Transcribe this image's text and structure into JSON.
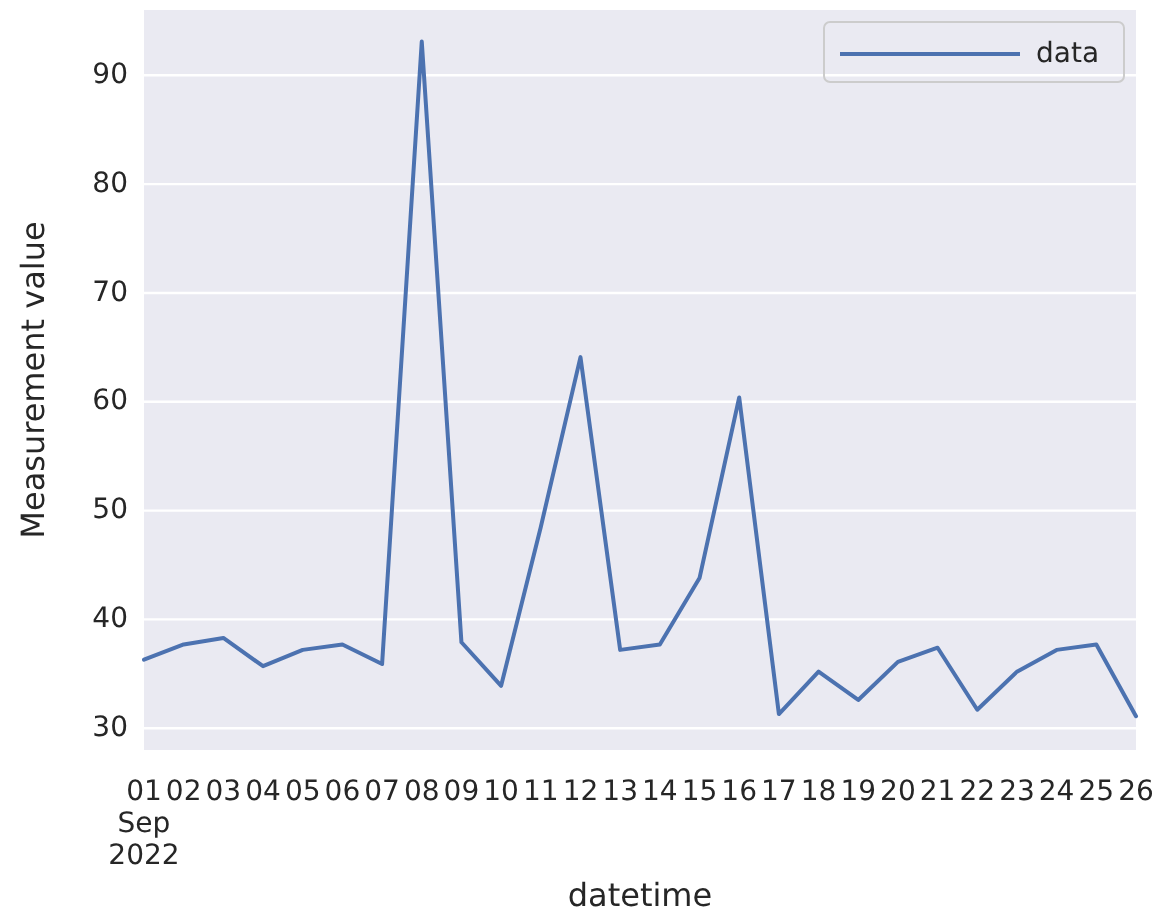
{
  "chart_data": {
    "type": "line",
    "xlabel": "datetime",
    "ylabel": "Measurement value",
    "x": [
      "2022-09-01",
      "2022-09-02",
      "2022-09-03",
      "2022-09-04",
      "2022-09-05",
      "2022-09-06",
      "2022-09-07",
      "2022-09-08",
      "2022-09-09",
      "2022-09-10",
      "2022-09-11",
      "2022-09-12",
      "2022-09-13",
      "2022-09-14",
      "2022-09-15",
      "2022-09-16",
      "2022-09-17",
      "2022-09-18",
      "2022-09-19",
      "2022-09-20",
      "2022-09-21",
      "2022-09-22",
      "2022-09-23",
      "2022-09-24",
      "2022-09-25",
      "2022-09-26"
    ],
    "series": [
      {
        "name": "data",
        "color": "#4c72b0",
        "values": [
          36.3,
          37.7,
          38.3,
          35.7,
          37.2,
          37.7,
          35.9,
          93.1,
          37.9,
          33.9,
          48.5,
          64.1,
          37.2,
          37.7,
          43.8,
          60.4,
          31.3,
          35.2,
          32.6,
          36.1,
          37.4,
          31.7,
          35.2,
          37.2,
          37.7,
          31.1
        ]
      }
    ],
    "xlim": [
      "2022-09-01",
      "2022-09-26"
    ],
    "xticks": [
      {
        "value": "2022-09-01",
        "label": "01\nSep\n2022"
      },
      {
        "value": "2022-09-02",
        "label": "02"
      },
      {
        "value": "2022-09-03",
        "label": "03"
      },
      {
        "value": "2022-09-04",
        "label": "04"
      },
      {
        "value": "2022-09-05",
        "label": "05"
      },
      {
        "value": "2022-09-06",
        "label": "06"
      },
      {
        "value": "2022-09-07",
        "label": "07"
      },
      {
        "value": "2022-09-08",
        "label": "08"
      },
      {
        "value": "2022-09-09",
        "label": "09"
      },
      {
        "value": "2022-09-10",
        "label": "10"
      },
      {
        "value": "2022-09-11",
        "label": "11"
      },
      {
        "value": "2022-09-12",
        "label": "12"
      },
      {
        "value": "2022-09-13",
        "label": "13"
      },
      {
        "value": "2022-09-14",
        "label": "14"
      },
      {
        "value": "2022-09-15",
        "label": "15"
      },
      {
        "value": "2022-09-16",
        "label": "16"
      },
      {
        "value": "2022-09-17",
        "label": "17"
      },
      {
        "value": "2022-09-18",
        "label": "18"
      },
      {
        "value": "2022-09-19",
        "label": "19"
      },
      {
        "value": "2022-09-20",
        "label": "20"
      },
      {
        "value": "2022-09-21",
        "label": "21"
      },
      {
        "value": "2022-09-22",
        "label": "22"
      },
      {
        "value": "2022-09-23",
        "label": "23"
      },
      {
        "value": "2022-09-24",
        "label": "24"
      },
      {
        "value": "2022-09-25",
        "label": "25"
      },
      {
        "value": "2022-09-26",
        "label": "26"
      }
    ],
    "ylim": [
      28,
      96
    ],
    "yticks": [
      30,
      40,
      50,
      60,
      70,
      80,
      90
    ],
    "grid": "y",
    "legend": "top right",
    "marker": "none",
    "line_style": "solid"
  }
}
